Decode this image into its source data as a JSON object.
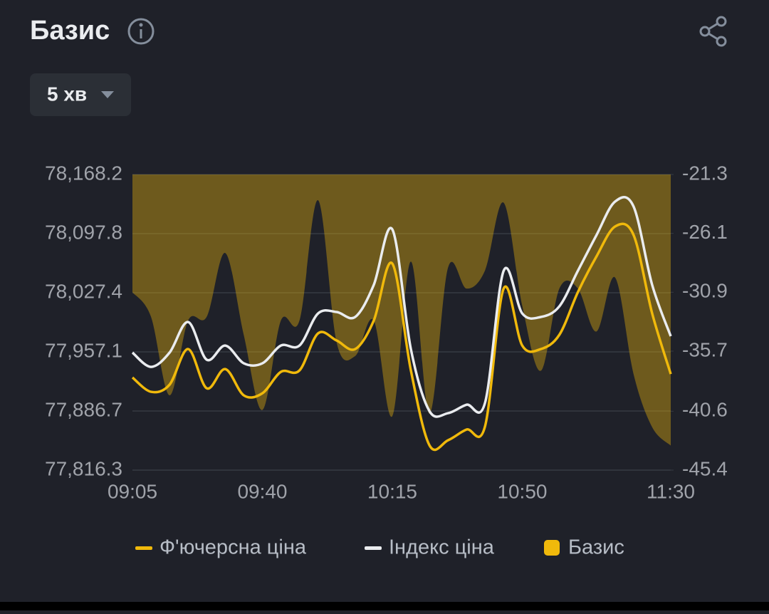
{
  "header": {
    "title": "Базис",
    "interval": "5 хв"
  },
  "chart_data": {
    "type": "line",
    "categories": [
      "09:05",
      null,
      null,
      null,
      null,
      null,
      null,
      "09:40",
      null,
      null,
      null,
      null,
      null,
      null,
      "10:15",
      null,
      null,
      null,
      null,
      null,
      null,
      "10:50",
      null,
      null,
      null,
      null,
      null,
      null,
      null,
      "11:30"
    ],
    "ylim": [
      77816.3,
      78168.2
    ],
    "yticks": [
      {
        "value": 78168.2,
        "label": "78,168.2"
      },
      {
        "value": 78097.8,
        "label": "78,097.8"
      },
      {
        "value": 78027.4,
        "label": "78,027.4"
      },
      {
        "value": 77957.1,
        "label": "77,957.1"
      },
      {
        "value": 77886.7,
        "label": "77,886.7"
      },
      {
        "value": 77816.3,
        "label": "77,816.3"
      }
    ],
    "y2lim": [
      -45.4,
      -21.3
    ],
    "y2ticks": [
      -21.3,
      -26.1,
      -30.9,
      -35.7,
      -40.6,
      -45.4
    ],
    "grid": true,
    "series": [
      {
        "name": "Ф'ючерсна ціна",
        "color": "#f0b90b",
        "values": [
          77926.5,
          77909.5,
          77918.0,
          77960.4,
          77913.7,
          77936.6,
          77905.3,
          77907.8,
          77933.3,
          77935.0,
          77979.1,
          77970.6,
          77960.4,
          77994.3,
          78062.2,
          77935.0,
          77845.9,
          77851.8,
          77864.6,
          77868.8,
          78032.5,
          77964.6,
          77960.4,
          77977.4,
          78028.3,
          78070.7,
          78106.3,
          78096.1,
          78002.8,
          77930.7
        ]
      },
      {
        "name": "Індекс ціна",
        "color": "#eaecef",
        "values": [
          77956.2,
          77939.2,
          77956.2,
          77992.6,
          77947.7,
          77964.6,
          77943.4,
          77943.4,
          77964.6,
          77964.6,
          78002.8,
          78004.5,
          77998.6,
          78036.7,
          78102.9,
          77960.4,
          77886.6,
          77884.1,
          77894.2,
          77896.8,
          78053.7,
          78002.8,
          77998.6,
          78011.3,
          78053.7,
          78096.1,
          78136.0,
          78130.0,
          78036.7,
          77975.7
        ]
      },
      {
        "name": "Базис",
        "color": "#f0b90b",
        "axis": "y2",
        "type": "area",
        "values": [
          -30.9,
          -32.9,
          -39.3,
          -33.2,
          -32.9,
          -27.7,
          -34.4,
          -40.5,
          -33.2,
          -33.2,
          -23.4,
          -35.0,
          -36.1,
          -33.2,
          -41.0,
          -28.4,
          -40.8,
          -28.9,
          -30.6,
          -29.1,
          -23.6,
          -32.0,
          -37.3,
          -30.6,
          -30.6,
          -34.1,
          -29.7,
          -37.6,
          -41.9,
          -43.4
        ]
      }
    ]
  }
}
